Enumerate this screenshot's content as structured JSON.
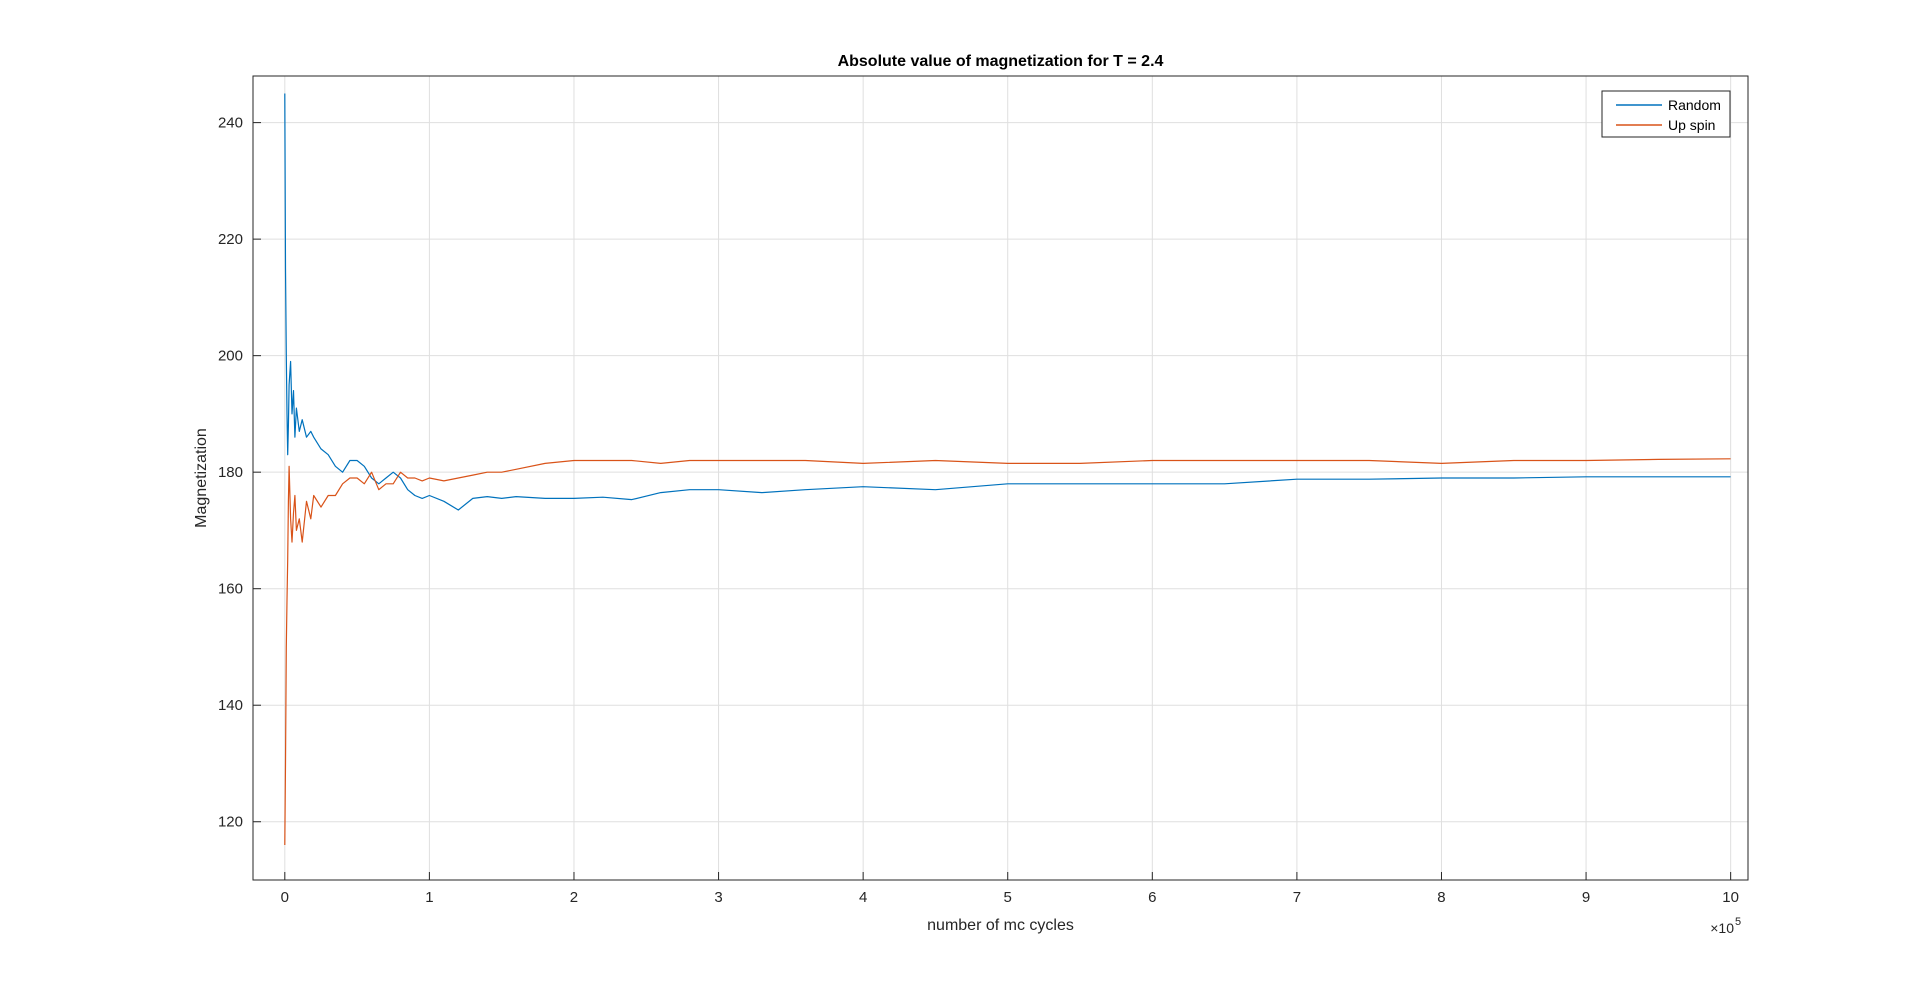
{
  "chart_data": {
    "type": "line",
    "title": "Absolute value of magnetization for T = 2.4",
    "xlabel": "number of mc cycles",
    "ylabel": "Magnetization",
    "x_exponent_base": "×10",
    "x_exponent_power": "5",
    "xlim": [
      -0.22,
      10.12
    ],
    "ylim": [
      110,
      248
    ],
    "x_ticks": [
      0,
      1,
      2,
      3,
      4,
      5,
      6,
      7,
      8,
      9,
      10
    ],
    "x_tick_labels": [
      "0",
      "1",
      "2",
      "3",
      "4",
      "5",
      "6",
      "7",
      "8",
      "9",
      "10"
    ],
    "y_ticks": [
      120,
      140,
      160,
      180,
      200,
      220,
      240
    ],
    "y_tick_labels": [
      "120",
      "140",
      "160",
      "180",
      "200",
      "220",
      "240"
    ],
    "grid": true,
    "legend_position": "top-right",
    "series": [
      {
        "name": "Random",
        "color": "#0072BD",
        "x": [
          0,
          0.005,
          0.01,
          0.015,
          0.02,
          0.025,
          0.03,
          0.04,
          0.05,
          0.06,
          0.07,
          0.08,
          0.1,
          0.12,
          0.15,
          0.18,
          0.2,
          0.25,
          0.3,
          0.35,
          0.4,
          0.45,
          0.5,
          0.55,
          0.6,
          0.65,
          0.7,
          0.75,
          0.8,
          0.85,
          0.9,
          0.95,
          1.0,
          1.1,
          1.2,
          1.3,
          1.4,
          1.5,
          1.6,
          1.8,
          2.0,
          2.2,
          2.4,
          2.6,
          2.8,
          3.0,
          3.3,
          3.6,
          4.0,
          4.5,
          5.0,
          5.5,
          6.0,
          6.5,
          7.0,
          7.5,
          8.0,
          8.5,
          9.0,
          9.5,
          10.0
        ],
        "values": [
          245,
          215,
          200,
          190,
          183,
          188,
          195,
          199,
          190,
          194,
          186,
          191,
          187,
          189,
          186,
          187,
          186,
          184,
          183,
          181,
          180,
          182,
          182,
          181,
          179,
          178,
          179,
          180,
          179,
          177,
          176,
          175.5,
          176,
          175,
          173.5,
          175.5,
          175.8,
          175.5,
          175.8,
          175.5,
          175.5,
          175.7,
          175.3,
          176.5,
          177,
          177,
          176.5,
          177,
          177.5,
          177,
          178,
          178,
          178,
          178,
          178.8,
          178.8,
          179,
          179,
          179.2,
          179.2,
          179.2
        ]
      },
      {
        "name": "Up spin",
        "color": "#D95319",
        "x": [
          0,
          0.005,
          0.01,
          0.015,
          0.02,
          0.025,
          0.03,
          0.04,
          0.05,
          0.06,
          0.07,
          0.08,
          0.1,
          0.12,
          0.15,
          0.18,
          0.2,
          0.25,
          0.3,
          0.35,
          0.4,
          0.45,
          0.5,
          0.55,
          0.6,
          0.65,
          0.7,
          0.75,
          0.8,
          0.85,
          0.9,
          0.95,
          1.0,
          1.1,
          1.2,
          1.3,
          1.4,
          1.5,
          1.6,
          1.8,
          2.0,
          2.2,
          2.4,
          2.6,
          2.8,
          3.0,
          3.3,
          3.6,
          4.0,
          4.5,
          5.0,
          5.5,
          6.0,
          6.5,
          7.0,
          7.5,
          8.0,
          8.5,
          9.0,
          9.5,
          10.0
        ],
        "values": [
          116,
          130,
          150,
          158,
          165,
          175,
          181,
          172,
          168,
          173,
          176,
          170,
          172,
          168,
          175,
          172,
          176,
          174,
          176,
          176,
          178,
          179,
          179,
          178,
          180,
          177,
          178,
          178,
          180,
          179,
          179,
          178.5,
          179,
          178.5,
          179,
          179.5,
          180,
          180,
          180.5,
          181.5,
          182,
          182,
          182,
          181.5,
          182,
          182,
          182,
          182,
          181.5,
          182,
          181.5,
          181.5,
          182,
          182,
          182,
          182,
          181.5,
          182,
          182,
          182.2,
          182.3
        ]
      }
    ]
  }
}
